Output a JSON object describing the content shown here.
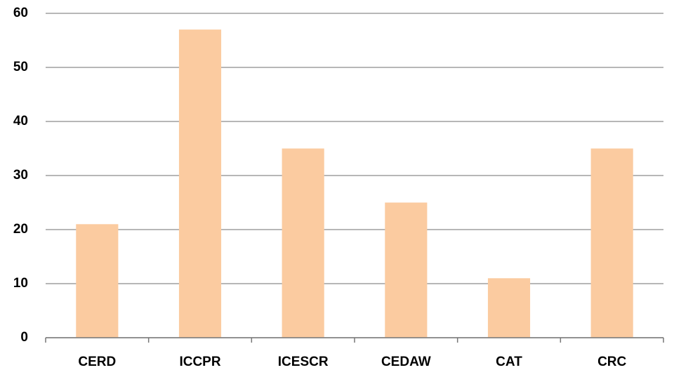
{
  "chart_data": {
    "type": "bar",
    "categories": [
      "CERD",
      "ICCPR",
      "ICESCR",
      "CEDAW",
      "CAT",
      "CRC"
    ],
    "values": [
      21,
      57,
      35,
      25,
      11,
      35
    ],
    "color": "#fbcba0",
    "ylim": [
      0,
      60
    ],
    "yticks": [
      0,
      10,
      20,
      30,
      40,
      50,
      60
    ],
    "grid": true
  }
}
